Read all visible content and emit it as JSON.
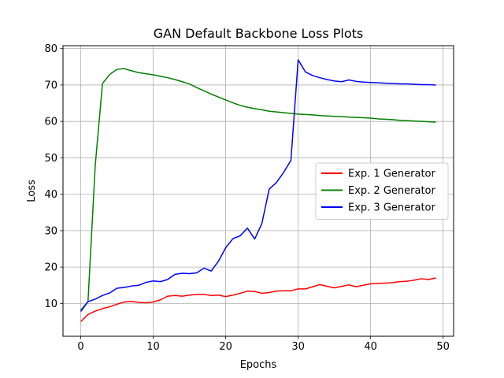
{
  "chart_data": {
    "type": "line",
    "title": "GAN Default Backbone Loss Plots",
    "xlabel": "Epochs",
    "ylabel": "Loss",
    "xlim": [
      -2.45,
      51.45
    ],
    "ylim": [
      1.0,
      80.8
    ],
    "x_ticks": [
      0,
      10,
      20,
      30,
      40,
      50
    ],
    "y_ticks": [
      10,
      20,
      30,
      40,
      50,
      60,
      70,
      80
    ],
    "grid": true,
    "legend_position": "center-right",
    "x": [
      0,
      1,
      2,
      3,
      4,
      5,
      6,
      7,
      8,
      9,
      10,
      11,
      12,
      13,
      14,
      15,
      16,
      17,
      18,
      19,
      20,
      21,
      22,
      23,
      24,
      25,
      26,
      27,
      28,
      29,
      30,
      31,
      32,
      33,
      34,
      35,
      36,
      37,
      38,
      39,
      40,
      41,
      42,
      43,
      44,
      45,
      46,
      47,
      48,
      49
    ],
    "series": [
      {
        "name": "Exp. 1 Generator",
        "color": "#ff0000",
        "values": [
          5.0,
          7.0,
          7.9,
          8.6,
          9.1,
          9.8,
          10.4,
          10.6,
          10.3,
          10.2,
          10.4,
          11.0,
          12.0,
          12.2,
          12.0,
          12.3,
          12.5,
          12.5,
          12.2,
          12.3,
          11.9,
          12.3,
          12.8,
          13.4,
          13.3,
          12.8,
          13.0,
          13.4,
          13.5,
          13.5,
          14.0,
          14.0,
          14.6,
          15.2,
          14.7,
          14.3,
          14.7,
          15.1,
          14.6,
          15.0,
          15.4,
          15.5,
          15.6,
          15.7,
          16.0,
          16.1,
          16.4,
          16.8,
          16.6,
          17.0
        ]
      },
      {
        "name": "Exp. 2 Generator",
        "color": "#008000",
        "values": [
          8.2,
          10.5,
          48.0,
          70.4,
          72.9,
          74.3,
          74.5,
          73.9,
          73.4,
          73.1,
          72.8,
          72.4,
          72.0,
          71.5,
          70.9,
          70.3,
          69.3,
          68.4,
          67.5,
          66.7,
          65.9,
          65.1,
          64.4,
          63.9,
          63.5,
          63.2,
          62.8,
          62.6,
          62.4,
          62.2,
          62.0,
          61.9,
          61.8,
          61.6,
          61.5,
          61.4,
          61.3,
          61.2,
          61.1,
          61.0,
          60.9,
          60.7,
          60.6,
          60.5,
          60.3,
          60.2,
          60.1,
          60.0,
          59.9,
          59.8
        ]
      },
      {
        "name": "Exp. 3 Generator",
        "color": "#0000ff",
        "values": [
          7.8,
          10.5,
          11.2,
          12.2,
          12.9,
          14.2,
          14.4,
          14.8,
          15.0,
          15.8,
          16.2,
          16.0,
          16.6,
          18.0,
          18.3,
          18.2,
          18.4,
          19.7,
          18.9,
          21.6,
          25.3,
          27.8,
          28.6,
          30.7,
          27.7,
          32.0,
          41.4,
          43.2,
          46.0,
          49.3,
          76.9,
          73.6,
          72.6,
          72.0,
          71.5,
          71.1,
          70.9,
          71.4,
          71.0,
          70.8,
          70.7,
          70.6,
          70.5,
          70.4,
          70.3,
          70.3,
          70.2,
          70.1,
          70.1,
          70.0
        ]
      }
    ]
  }
}
